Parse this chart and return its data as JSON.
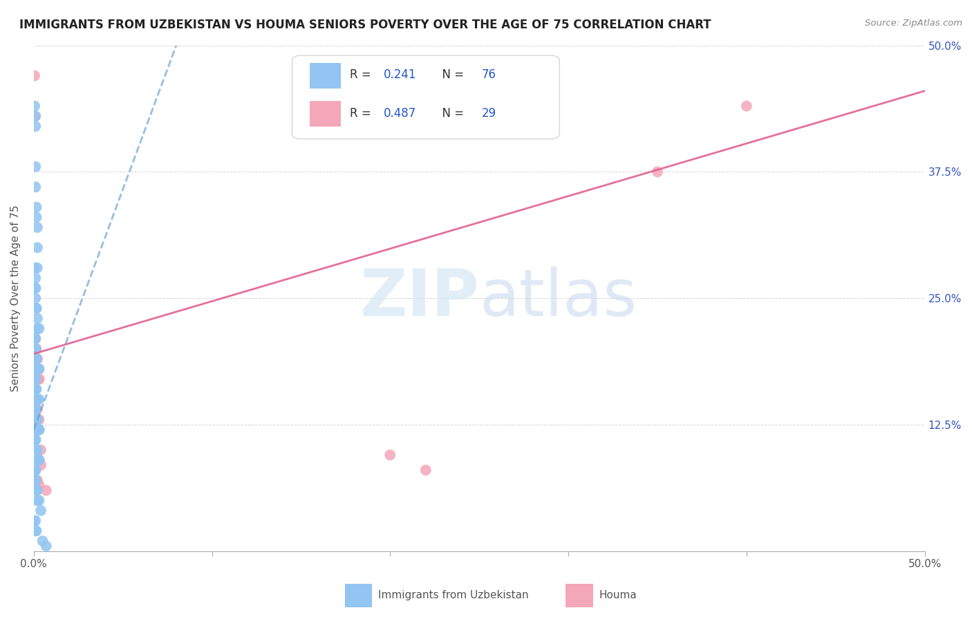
{
  "title": "IMMIGRANTS FROM UZBEKISTAN VS HOUMA SENIORS POVERTY OVER THE AGE OF 75 CORRELATION CHART",
  "source": "Source: ZipAtlas.com",
  "ylabel": "Seniors Poverty Over the Age of 75",
  "xlim": [
    0.0,
    0.5
  ],
  "ylim": [
    0.0,
    0.5
  ],
  "xticks": [
    0.0,
    0.1,
    0.2,
    0.3,
    0.4,
    0.5
  ],
  "xticklabels": [
    "0.0%",
    "",
    "",
    "",
    "",
    "50.0%"
  ],
  "yticks": [
    0.0,
    0.125,
    0.25,
    0.375,
    0.5
  ],
  "right_yticklabels": [
    "50.0%",
    "37.5%",
    "25.0%",
    "12.5%",
    ""
  ],
  "blue_color": "#92C5F2",
  "pink_color": "#F4A7B9",
  "blue_line_color": "#5B9BD5",
  "pink_line_color": "#E06090",
  "watermark_zip": "ZIP",
  "watermark_atlas": "atlas",
  "legend_r1": "0.241",
  "legend_n1": "76",
  "legend_r2": "0.487",
  "legend_n2": "29",
  "blue_seed": 12345,
  "pink_seed": 67890,
  "blue_dots_x": [
    0.0005,
    0.0008,
    0.001,
    0.001,
    0.001,
    0.0015,
    0.0015,
    0.002,
    0.002,
    0.002,
    0.0005,
    0.001,
    0.001,
    0.001,
    0.001,
    0.0015,
    0.0015,
    0.002,
    0.002,
    0.003,
    0.0005,
    0.001,
    0.001,
    0.001,
    0.001,
    0.0015,
    0.0015,
    0.002,
    0.002,
    0.003,
    0.0005,
    0.001,
    0.001,
    0.001,
    0.001,
    0.0015,
    0.0015,
    0.002,
    0.002,
    0.003,
    0.0005,
    0.001,
    0.001,
    0.001,
    0.001,
    0.0015,
    0.002,
    0.002,
    0.003,
    0.003,
    0.0005,
    0.001,
    0.001,
    0.001,
    0.001,
    0.0015,
    0.002,
    0.002,
    0.003,
    0.003,
    0.0005,
    0.001,
    0.001,
    0.001,
    0.001,
    0.0015,
    0.002,
    0.002,
    0.003,
    0.004,
    0.0003,
    0.001,
    0.001,
    0.0015,
    0.005,
    0.007
  ],
  "blue_dots_y": [
    0.44,
    0.43,
    0.42,
    0.38,
    0.36,
    0.34,
    0.33,
    0.32,
    0.3,
    0.28,
    0.28,
    0.27,
    0.26,
    0.26,
    0.25,
    0.24,
    0.24,
    0.23,
    0.22,
    0.22,
    0.21,
    0.21,
    0.2,
    0.2,
    0.19,
    0.19,
    0.19,
    0.18,
    0.18,
    0.18,
    0.17,
    0.17,
    0.17,
    0.16,
    0.16,
    0.16,
    0.15,
    0.15,
    0.15,
    0.15,
    0.14,
    0.14,
    0.14,
    0.14,
    0.13,
    0.13,
    0.13,
    0.12,
    0.12,
    0.12,
    0.12,
    0.11,
    0.11,
    0.11,
    0.11,
    0.1,
    0.1,
    0.09,
    0.09,
    0.09,
    0.08,
    0.08,
    0.08,
    0.07,
    0.07,
    0.06,
    0.06,
    0.05,
    0.05,
    0.04,
    0.03,
    0.03,
    0.02,
    0.02,
    0.01,
    0.005
  ],
  "pink_dots_x": [
    0.0005,
    0.001,
    0.001,
    0.0015,
    0.002,
    0.002,
    0.002,
    0.003,
    0.003,
    0.003,
    0.0005,
    0.001,
    0.001,
    0.0015,
    0.002,
    0.002,
    0.003,
    0.003,
    0.004,
    0.004,
    0.001,
    0.0015,
    0.002,
    0.003,
    0.007,
    0.2,
    0.22,
    0.35,
    0.4
  ],
  "pink_dots_y": [
    0.47,
    0.43,
    0.21,
    0.2,
    0.19,
    0.19,
    0.18,
    0.18,
    0.17,
    0.17,
    0.16,
    0.15,
    0.15,
    0.14,
    0.14,
    0.13,
    0.13,
    0.12,
    0.1,
    0.085,
    0.08,
    0.07,
    0.07,
    0.065,
    0.06,
    0.095,
    0.08,
    0.375,
    0.44
  ],
  "pink_line_x0": 0.0,
  "pink_line_y0": 0.195,
  "pink_line_x1": 0.5,
  "pink_line_y1": 0.455,
  "blue_line_x0": 0.0,
  "blue_line_y0": 0.12,
  "blue_line_x1": 0.08,
  "blue_line_y1": 0.5
}
